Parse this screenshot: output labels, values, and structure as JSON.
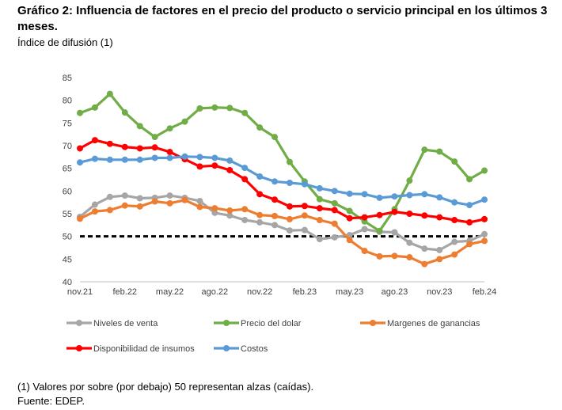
{
  "title": "Gráfico 2: Influencia de factores en el precio del producto o servicio principal en los últimos 3 meses.",
  "subtitle": "Índice de difusión (1)",
  "note": "(1) Valores por sobre (por debajo) 50 representan alzas (caídas).",
  "source": "Fuente: EDEP.",
  "chart_data": {
    "type": "line",
    "ylim": [
      40,
      85
    ],
    "yticks": [
      40,
      45,
      50,
      55,
      60,
      65,
      70,
      75,
      80,
      85
    ],
    "x_tick_labels": [
      "nov.21",
      "feb.22",
      "may.22",
      "ago.22",
      "nov.22",
      "feb.23",
      "may.23",
      "ago.23",
      "nov.23",
      "feb.24"
    ],
    "x": [
      "nov.21",
      "dic.21",
      "ene.22",
      "feb.22",
      "mar.22",
      "abr.22",
      "may.22",
      "jun.22",
      "jul.22",
      "ago.22",
      "sep.22",
      "oct.22",
      "nov.22",
      "dic.22",
      "ene.23",
      "feb.23",
      "mar.23",
      "abr.23",
      "may.23",
      "jun.23",
      "jul.23",
      "ago.23",
      "sep.23",
      "oct.23",
      "nov.23",
      "dic.23",
      "ene.24",
      "feb.24"
    ],
    "reference_line": 50,
    "series": [
      {
        "name": "Niveles de venta",
        "color": "#a6a6a6",
        "values": [
          54.3,
          57.0,
          58.7,
          59.0,
          58.4,
          58.5,
          59.0,
          58.5,
          57.8,
          55.2,
          54.6,
          53.6,
          53.1,
          52.5,
          51.3,
          51.4,
          49.4,
          49.8,
          50.3,
          51.6,
          51.0,
          50.9,
          48.6,
          47.3,
          47.0,
          48.8,
          49.0,
          50.5
        ]
      },
      {
        "name": "Precio del dolar",
        "color": "#70ad47",
        "values": [
          77.2,
          78.4,
          81.4,
          77.3,
          74.3,
          71.9,
          73.8,
          75.3,
          78.2,
          78.4,
          78.3,
          77.2,
          74.0,
          71.9,
          66.4,
          62.1,
          58.2,
          57.3,
          55.6,
          53.3,
          51.2,
          56.0,
          62.3,
          69.1,
          68.7,
          66.5,
          62.6,
          64.5
        ]
      },
      {
        "name": "Margenes de ganancias",
        "color": "#ed7d31",
        "values": [
          53.9,
          55.5,
          55.8,
          56.8,
          56.6,
          57.7,
          57.3,
          58.0,
          56.5,
          56.2,
          55.7,
          56.0,
          54.7,
          54.5,
          53.8,
          54.6,
          53.6,
          52.8,
          49.2,
          46.8,
          45.6,
          45.7,
          45.4,
          43.9,
          45.0,
          46.0,
          48.3,
          49.0
        ]
      },
      {
        "name": "Disponibilidad de insumos",
        "color": "#ff0000",
        "values": [
          69.4,
          71.2,
          70.4,
          69.7,
          69.4,
          69.6,
          68.6,
          67.0,
          65.4,
          65.6,
          64.6,
          62.6,
          59.3,
          58.1,
          56.6,
          56.7,
          56.2,
          55.8,
          54.0,
          54.2,
          54.7,
          55.4,
          55.0,
          54.6,
          54.2,
          53.6,
          53.1,
          53.8
        ]
      },
      {
        "name": "Costos",
        "color": "#5b9bd5",
        "values": [
          66.3,
          67.1,
          66.9,
          66.9,
          66.9,
          67.3,
          67.3,
          67.6,
          67.5,
          67.3,
          66.7,
          65.1,
          63.2,
          62.1,
          61.8,
          61.5,
          60.6,
          60.0,
          59.4,
          59.3,
          58.5,
          58.8,
          59.1,
          59.3,
          58.6,
          57.5,
          56.9,
          58.1
        ]
      }
    ]
  }
}
